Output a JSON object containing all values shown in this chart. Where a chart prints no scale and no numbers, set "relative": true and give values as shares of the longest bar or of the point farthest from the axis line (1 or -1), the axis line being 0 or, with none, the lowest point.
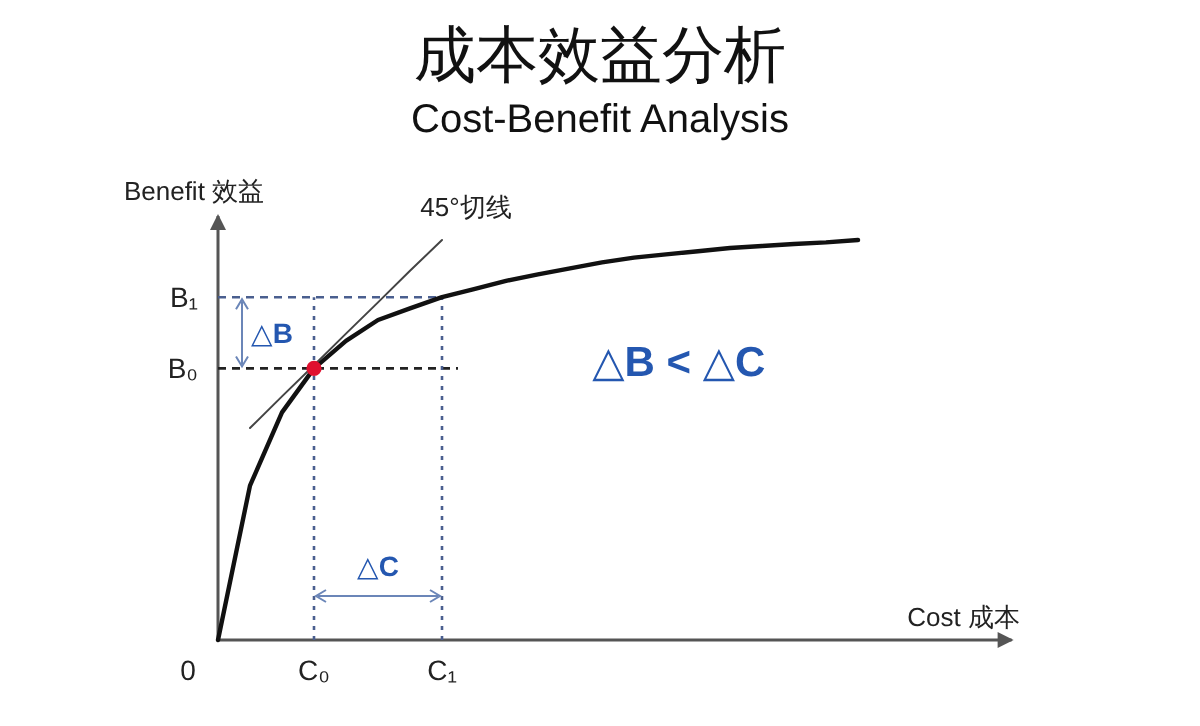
{
  "chart_data": {
    "type": "line",
    "relative": true,
    "title": "成本效益分析",
    "subtitle": "Cost-Benefit Analysis",
    "xlabel": "Cost 成本",
    "ylabel": "Benefit 效益",
    "categories": [
      null,
      null,
      null,
      "C₀",
      null,
      null,
      null,
      "C₁",
      null,
      null,
      null,
      null,
      null,
      null,
      null,
      null,
      null,
      null,
      null,
      null,
      null
    ],
    "series": [
      {
        "color": "#111111",
        "values": [
          0,
          0.386,
          0.569,
          0.679,
          0.748,
          0.8,
          0.829,
          0.857,
          0.877,
          0.898,
          0.914,
          0.929,
          0.944,
          0.956,
          0.964,
          0.972,
          0.98,
          0.985,
          0.99,
          0.994,
          1.0
        ]
      },
      {
        "color": "#444444",
        "values": [
          null,
          0.53,
          0.609,
          0.687,
          0.766,
          0.844,
          0.923,
          1.0,
          null,
          null,
          null,
          null,
          null,
          null,
          null,
          null,
          null,
          null,
          null,
          null,
          null
        ]
      },
      {
        "type": "scatter",
        "marker": "circle",
        "color": "#e0102f",
        "values": [
          null,
          null,
          null,
          0.679,
          null,
          null,
          null,
          null,
          null,
          null,
          null,
          null,
          null,
          null,
          null,
          null,
          null,
          null,
          null,
          null,
          null
        ]
      }
    ],
    "ref_lines": [
      {
        "axis": "y",
        "value": 0.679,
        "label": "B₀",
        "color": "#222222",
        "line_style": "dashed"
      },
      {
        "axis": "y",
        "value": 0.857,
        "label": "B₁",
        "color": "#4a5f8f",
        "line_style": "dashed"
      },
      {
        "axis": "x",
        "value": "C₀",
        "color": "#4a5f8f",
        "line_style": "dotted"
      },
      {
        "axis": "x",
        "value": "C₁",
        "color": "#4a5f8f",
        "line_style": "dotted"
      }
    ],
    "annotations": [
      "0",
      "45°切线",
      "△B",
      "△C",
      "△B < △C"
    ]
  }
}
